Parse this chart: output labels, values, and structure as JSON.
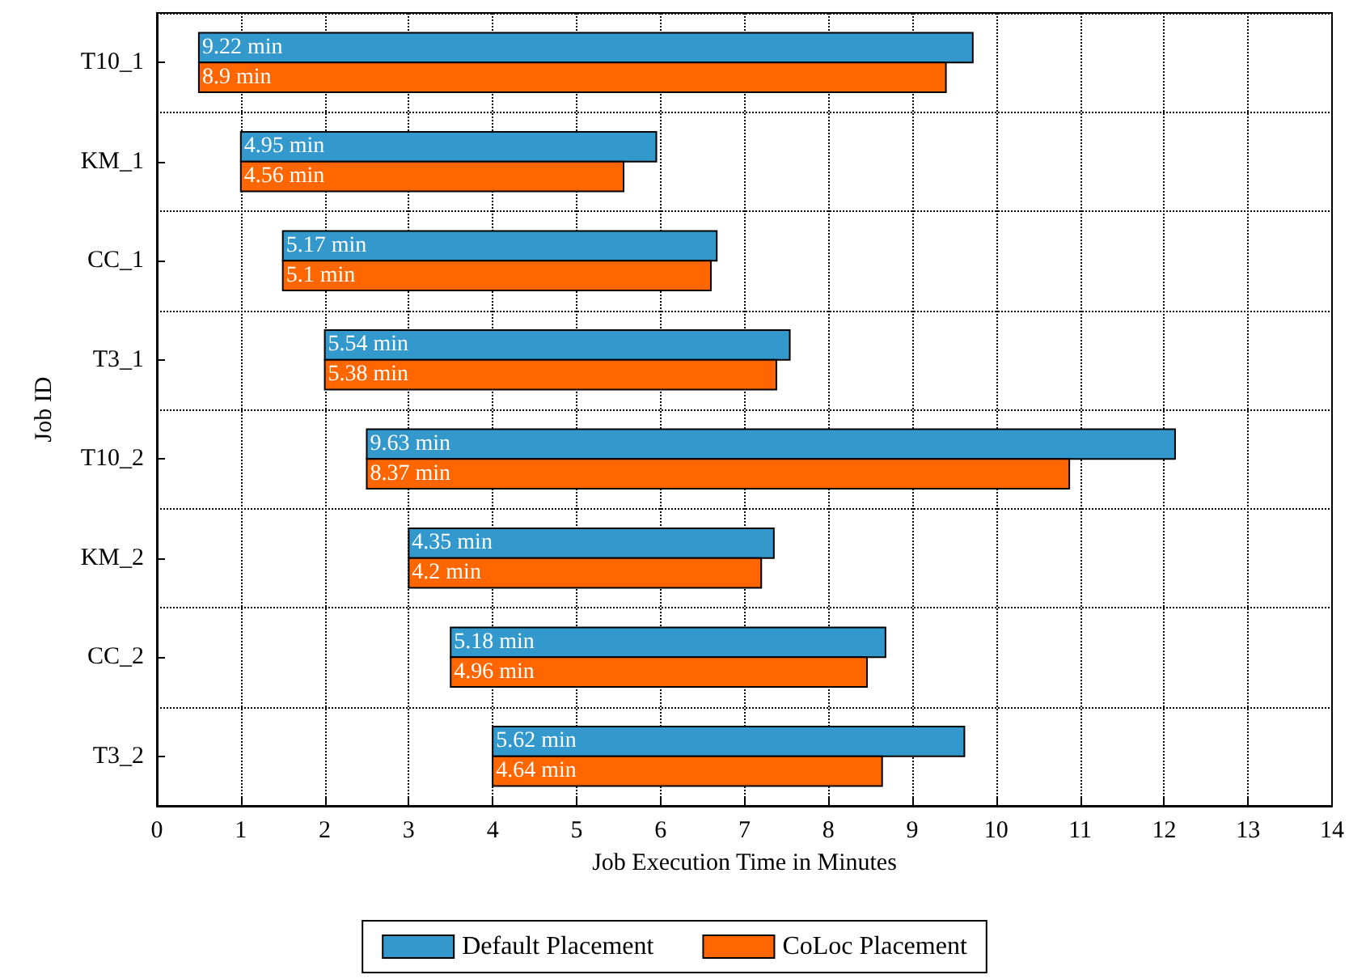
{
  "chart_data": {
    "type": "bar",
    "orientation": "horizontal",
    "xlabel": "Job Execution Time in Minutes",
    "ylabel": "Job ID",
    "categories": [
      "T10_1",
      "KM_1",
      "CC_1",
      "T3_1",
      "T10_2",
      "KM_2",
      "CC_2",
      "T3_2"
    ],
    "series": [
      {
        "name": "Default Placement",
        "color": "#3399cc",
        "base": [
          0.5,
          1,
          1.5,
          2,
          2.5,
          3,
          3.5,
          4
        ],
        "values": [
          9.22,
          4.95,
          5.17,
          5.54,
          9.63,
          4.35,
          5.18,
          5.62
        ],
        "value_labels": [
          "9.22 min",
          "4.95 min",
          "5.17 min",
          "5.54 min",
          "9.63 min",
          "4.35 min",
          "5.18 min",
          "5.62 min"
        ]
      },
      {
        "name": "CoLoc Placement",
        "color": "#ff6600",
        "base": [
          0.5,
          1,
          1.5,
          2,
          2.5,
          3,
          3.5,
          4
        ],
        "values": [
          8.9,
          4.56,
          5.1,
          5.38,
          8.37,
          4.2,
          4.96,
          4.64
        ],
        "value_labels": [
          "8.9 min",
          "4.56 min",
          "5.1 min",
          "5.38 min",
          "8.37 min",
          "4.2 min",
          "4.96 min",
          "4.64 min"
        ]
      }
    ],
    "xlim": [
      0,
      14
    ],
    "xticks": [
      0,
      1,
      2,
      3,
      4,
      5,
      6,
      7,
      8,
      9,
      10,
      11,
      12,
      13,
      14
    ],
    "grid": true,
    "legend": "bottom"
  }
}
